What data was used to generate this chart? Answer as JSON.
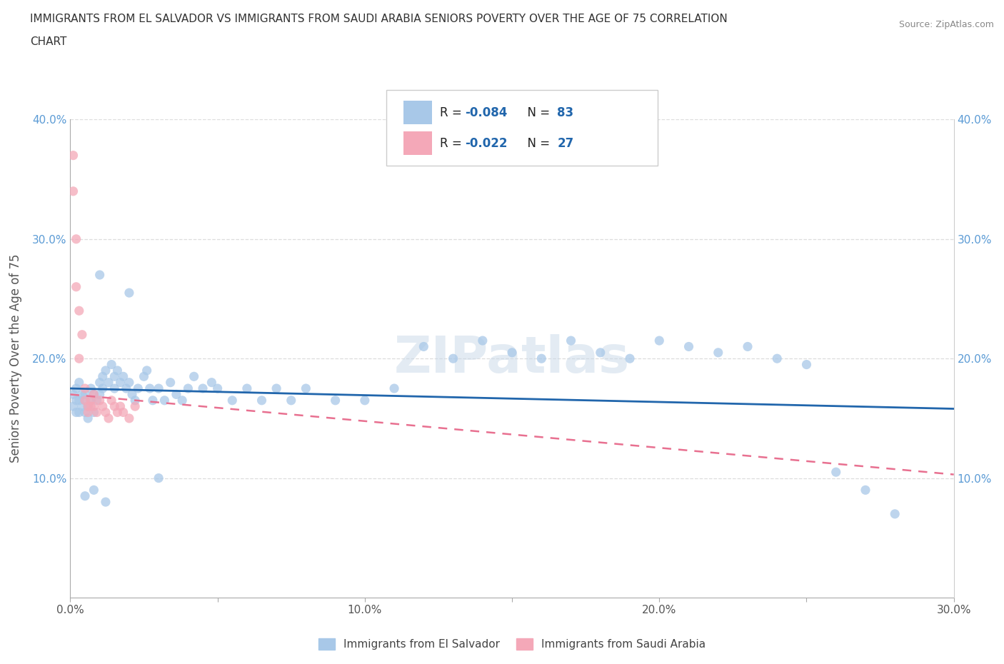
{
  "title_line1": "IMMIGRANTS FROM EL SALVADOR VS IMMIGRANTS FROM SAUDI ARABIA SENIORS POVERTY OVER THE AGE OF 75 CORRELATION",
  "title_line2": "CHART",
  "source": "Source: ZipAtlas.com",
  "ylabel": "Seniors Poverty Over the Age of 75",
  "xlim": [
    0,
    0.3
  ],
  "ylim": [
    0,
    0.4
  ],
  "el_salvador_color": "#a8c8e8",
  "saudi_arabia_color": "#f4a8b8",
  "el_salvador_line_color": "#2166ac",
  "saudi_arabia_line_color": "#e87090",
  "r_el_salvador": -0.084,
  "n_el_salvador": 83,
  "r_saudi_arabia": -0.022,
  "n_saudi_arabia": 27,
  "legend_label_1": "Immigrants from El Salvador",
  "legend_label_2": "Immigrants from Saudi Arabia",
  "watermark": "ZIPatlas",
  "el_trendline_y0": 0.175,
  "el_trendline_y1": 0.158,
  "sa_trendline_y0": 0.17,
  "sa_trendline_y1": 0.103,
  "el_salvador_x": [
    0.001,
    0.001,
    0.002,
    0.002,
    0.002,
    0.003,
    0.003,
    0.003,
    0.004,
    0.004,
    0.005,
    0.005,
    0.005,
    0.006,
    0.006,
    0.007,
    0.007,
    0.008,
    0.008,
    0.009,
    0.01,
    0.01,
    0.011,
    0.011,
    0.012,
    0.013,
    0.014,
    0.015,
    0.015,
    0.016,
    0.017,
    0.018,
    0.019,
    0.02,
    0.021,
    0.022,
    0.023,
    0.025,
    0.026,
    0.027,
    0.028,
    0.03,
    0.032,
    0.034,
    0.036,
    0.038,
    0.04,
    0.042,
    0.045,
    0.048,
    0.05,
    0.055,
    0.06,
    0.065,
    0.07,
    0.075,
    0.08,
    0.09,
    0.1,
    0.11,
    0.12,
    0.13,
    0.14,
    0.15,
    0.16,
    0.17,
    0.18,
    0.19,
    0.2,
    0.21,
    0.22,
    0.23,
    0.24,
    0.25,
    0.26,
    0.27,
    0.28,
    0.01,
    0.02,
    0.03,
    0.005,
    0.008,
    0.012
  ],
  "el_salvador_y": [
    0.17,
    0.16,
    0.175,
    0.165,
    0.155,
    0.18,
    0.165,
    0.155,
    0.17,
    0.16,
    0.165,
    0.155,
    0.17,
    0.16,
    0.15,
    0.175,
    0.165,
    0.155,
    0.17,
    0.165,
    0.18,
    0.17,
    0.175,
    0.185,
    0.19,
    0.18,
    0.195,
    0.185,
    0.175,
    0.19,
    0.18,
    0.185,
    0.175,
    0.18,
    0.17,
    0.165,
    0.175,
    0.185,
    0.19,
    0.175,
    0.165,
    0.175,
    0.165,
    0.18,
    0.17,
    0.165,
    0.175,
    0.185,
    0.175,
    0.18,
    0.175,
    0.165,
    0.175,
    0.165,
    0.175,
    0.165,
    0.175,
    0.165,
    0.165,
    0.175,
    0.21,
    0.2,
    0.215,
    0.205,
    0.2,
    0.215,
    0.205,
    0.2,
    0.215,
    0.21,
    0.205,
    0.21,
    0.2,
    0.195,
    0.105,
    0.09,
    0.07,
    0.27,
    0.255,
    0.1,
    0.085,
    0.09,
    0.08
  ],
  "saudi_arabia_x": [
    0.001,
    0.001,
    0.002,
    0.002,
    0.003,
    0.003,
    0.004,
    0.005,
    0.005,
    0.006,
    0.006,
    0.007,
    0.007,
    0.008,
    0.008,
    0.009,
    0.01,
    0.011,
    0.012,
    0.013,
    0.014,
    0.015,
    0.016,
    0.017,
    0.018,
    0.02,
    0.022
  ],
  "saudi_arabia_y": [
    0.37,
    0.34,
    0.3,
    0.26,
    0.24,
    0.2,
    0.22,
    0.175,
    0.165,
    0.16,
    0.155,
    0.16,
    0.165,
    0.17,
    0.16,
    0.155,
    0.165,
    0.16,
    0.155,
    0.15,
    0.165,
    0.16,
    0.155,
    0.16,
    0.155,
    0.15,
    0.16
  ]
}
